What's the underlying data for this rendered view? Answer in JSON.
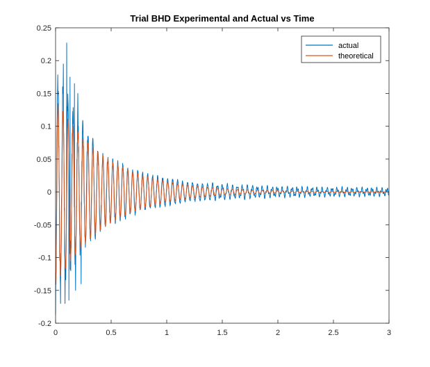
{
  "chart_data": {
    "type": "line",
    "title": "Trial BHD Experimental and Actual vs Time",
    "xlabel": "",
    "ylabel": "",
    "xlim": [
      0,
      3
    ],
    "ylim": [
      -0.2,
      0.25
    ],
    "xticks": [
      0,
      0.5,
      1,
      1.5,
      2,
      2.5,
      3
    ],
    "xtick_labels": [
      "0",
      "0.5",
      "1",
      "1.5",
      "2",
      "2.5",
      "3"
    ],
    "yticks": [
      -0.2,
      -0.15,
      -0.1,
      -0.05,
      0,
      0.05,
      0.1,
      0.15,
      0.2,
      0.25
    ],
    "ytick_labels": [
      "-0.2",
      "-0.15",
      "-0.1",
      "-0.05",
      "0",
      "0.05",
      "0.1",
      "0.15",
      "0.2",
      "0.25"
    ],
    "grid": false,
    "legend_position": "top-right",
    "series": [
      {
        "name": "actual",
        "color": "#0072BD",
        "model": "damped oscillation with noise and spikes",
        "frequency_hz": 22.3,
        "envelope_points": [
          [
            0,
            0.165
          ],
          [
            0.2,
            0.1
          ],
          [
            0.4,
            0.055
          ],
          [
            0.6,
            0.04
          ],
          [
            0.8,
            0.027
          ],
          [
            1.0,
            0.02
          ],
          [
            1.2,
            0.014
          ],
          [
            1.5,
            0.01
          ],
          [
            2.0,
            0.006
          ],
          [
            2.5,
            0.005
          ],
          [
            3.0,
            0.004
          ]
        ],
        "offset": 0.01,
        "spikes": [
          [
            0.1,
            0.227
          ],
          [
            0.07,
            0.195
          ],
          [
            0.13,
            0.175
          ],
          [
            0.17,
            0.165
          ],
          [
            0.2,
            0.15
          ],
          [
            0.085,
            -0.17
          ],
          [
            0.045,
            -0.17
          ],
          [
            0.12,
            -0.165
          ],
          [
            0.18,
            -0.15
          ],
          [
            0.23,
            -0.14
          ]
        ]
      },
      {
        "name": "theoretical",
        "color": "#D95319",
        "model": "damped cosine",
        "amplitude": 0.142,
        "decay_rate": 2.2,
        "frequency_hz": 22.3,
        "start_value": -0.142
      }
    ]
  }
}
